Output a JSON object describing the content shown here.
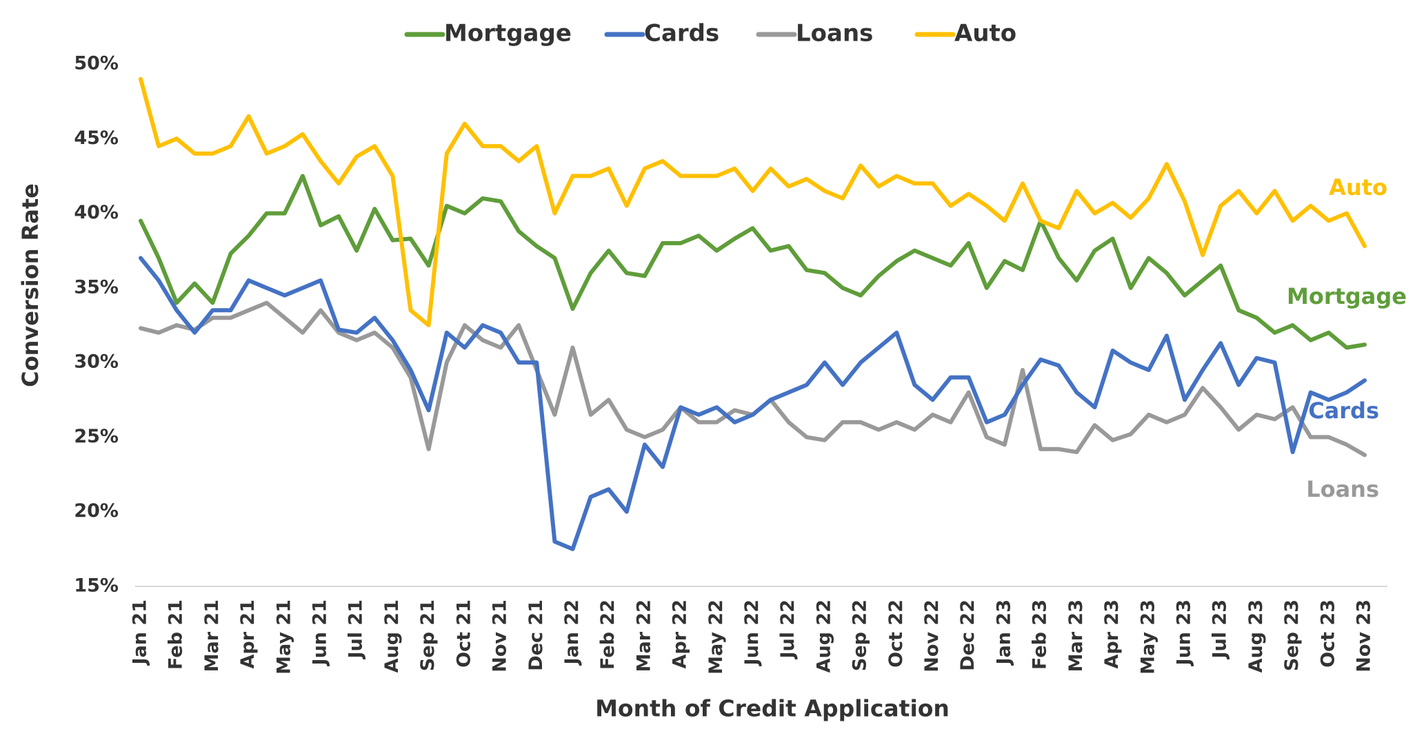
{
  "chart_data": {
    "type": "line",
    "x_label": "Month of Credit Application",
    "y_label": "Conversion Rate",
    "categories": [
      "Jan 21",
      null,
      "Feb 21",
      null,
      "Mar 21",
      null,
      "Apr 21",
      null,
      "May 21",
      null,
      "Jun 21",
      null,
      "Jul 21",
      null,
      "Aug 21",
      null,
      "Sep 21",
      null,
      "Oct 21",
      null,
      "Nov 21",
      null,
      "Dec 21",
      null,
      "Jan 22",
      null,
      "Feb 22",
      null,
      "Mar 22",
      null,
      "Apr 22",
      null,
      "May 22",
      null,
      "Jun 22",
      null,
      "Jul 22",
      null,
      "Aug 22",
      null,
      "Sep 22",
      null,
      "Oct 22",
      null,
      "Nov 22",
      null,
      "Dec 22",
      null,
      "Jan 23",
      null,
      "Feb 23",
      null,
      "Mar 23",
      null,
      "Apr 23",
      null,
      "May 23",
      null,
      "Jun 23",
      null,
      "Jul 23",
      null,
      "Aug 23",
      null,
      "Sep 23",
      null,
      "Oct 23",
      null,
      "Nov 23"
    ],
    "series": [
      {
        "name": "Mortgage",
        "color": "#5f9d3a",
        "values": [
          39.5,
          37,
          34,
          35.3,
          34,
          37.3,
          38.5,
          40,
          40,
          42.5,
          39.2,
          39.8,
          37.5,
          40.3,
          38.2,
          38.3,
          36.5,
          40.5,
          40,
          41,
          40.8,
          38.8,
          37.8,
          37,
          33.6,
          36,
          37.5,
          36,
          35.8,
          38,
          38,
          38.5,
          37.5,
          38.3,
          39,
          37.5,
          37.8,
          36.2,
          36,
          35,
          34.5,
          35.8,
          36.8,
          37.5,
          37,
          36.5,
          38,
          35,
          36.8,
          36.2,
          39.5,
          37,
          35.5,
          37.5,
          38.3,
          35,
          37,
          36,
          34.5,
          35.5,
          36.5,
          33.5,
          33,
          32,
          32.5,
          31.5,
          32,
          31,
          31.2
        ]
      },
      {
        "name": "Cards",
        "color": "#4472c4",
        "values": [
          37,
          35.5,
          33.5,
          32,
          33.5,
          33.5,
          35.5,
          35,
          34.5,
          35,
          35.5,
          32.2,
          32,
          33,
          31.5,
          29.5,
          26.8,
          32,
          31,
          32.5,
          32,
          30,
          30,
          18,
          17.5,
          21,
          21.5,
          20,
          24.5,
          23,
          27,
          26.5,
          27,
          26,
          26.5,
          27.5,
          28,
          28.5,
          30,
          28.5,
          30,
          31,
          32,
          28.5,
          27.5,
          29,
          29,
          26,
          26.5,
          28.5,
          30.2,
          29.8,
          28,
          27,
          30.8,
          30,
          29.5,
          31.8,
          27.5,
          29.5,
          31.3,
          28.5,
          30.3,
          30,
          24,
          28,
          27.5,
          28,
          28.8
        ]
      },
      {
        "name": "Loans",
        "color": "#999999",
        "values": [
          32.3,
          32,
          32.5,
          32.2,
          33,
          33,
          33.5,
          34,
          33,
          32,
          33.5,
          32,
          31.5,
          32,
          31,
          29,
          24.2,
          30,
          32.5,
          31.5,
          31,
          32.5,
          29.5,
          26.5,
          31,
          26.5,
          27.5,
          25.5,
          25,
          25.5,
          27,
          26,
          26,
          26.8,
          26.5,
          27.5,
          26,
          25,
          24.8,
          26,
          26,
          25.5,
          26,
          25.5,
          26.5,
          26,
          28,
          25,
          24.5,
          29.5,
          24.2,
          24.2,
          24,
          25.8,
          24.8,
          25.2,
          26.5,
          26,
          26.5,
          28.3,
          27,
          25.5,
          26.5,
          26.2,
          27,
          25,
          25,
          24.5,
          23.8
        ]
      },
      {
        "name": "Auto",
        "color": "#ffc000",
        "values": [
          49,
          44.5,
          45,
          44,
          44,
          44.5,
          46.5,
          44,
          44.5,
          45.3,
          43.5,
          42,
          43.8,
          44.5,
          42.5,
          33.5,
          32.5,
          44,
          46,
          44.5,
          44.5,
          43.5,
          44.5,
          40,
          42.5,
          42.5,
          43,
          40.5,
          43,
          43.5,
          42.5,
          42.5,
          42.5,
          43,
          41.5,
          43,
          41.8,
          42.3,
          41.5,
          41,
          43.2,
          41.8,
          42.5,
          42,
          42,
          40.5,
          41.3,
          40.5,
          39.5,
          42,
          39.5,
          39,
          41.5,
          40,
          40.7,
          39.7,
          41,
          43.3,
          40.8,
          37.2,
          40.5,
          41.5,
          40,
          41.5,
          39.5,
          40.5,
          39.5,
          40,
          37.8
        ]
      }
    ],
    "ylim": [
      15,
      50
    ],
    "yticks": [
      {
        "value": 15,
        "label": "15%"
      },
      {
        "value": 20,
        "label": "20%"
      },
      {
        "value": 25,
        "label": "25%"
      },
      {
        "value": 30,
        "label": "30%"
      },
      {
        "value": 35,
        "label": "35%"
      },
      {
        "value": 40,
        "label": "40%"
      },
      {
        "value": 45,
        "label": "45%"
      },
      {
        "value": 50,
        "label": "50%"
      }
    ],
    "grid": false,
    "legend": "top"
  }
}
